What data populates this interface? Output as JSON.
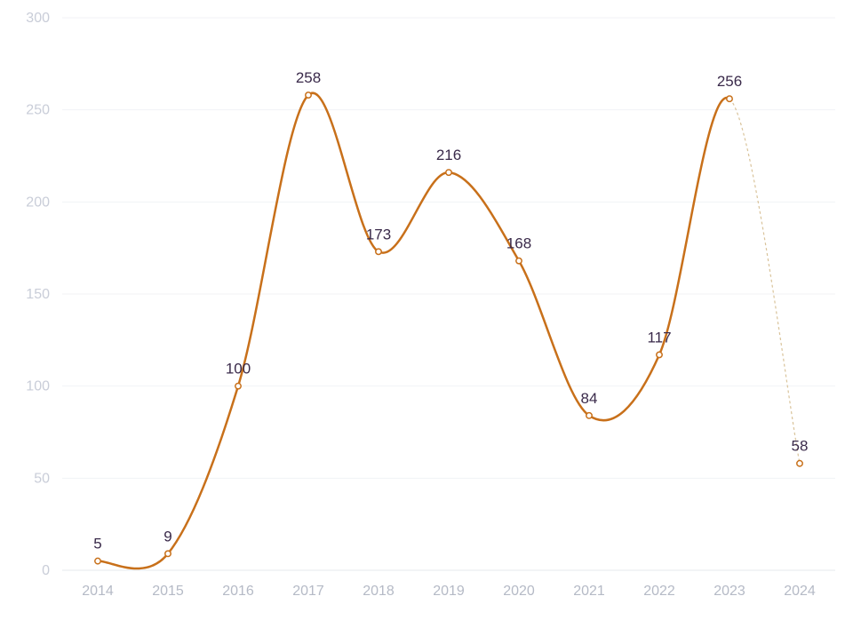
{
  "chart_data": {
    "type": "line",
    "title": "",
    "xlabel": "",
    "ylabel": "",
    "categories": [
      "2014",
      "2015",
      "2016",
      "2017",
      "2018",
      "2019",
      "2020",
      "2021",
      "2022",
      "2023",
      "2024"
    ],
    "series": [
      {
        "values": [
          5,
          9,
          100,
          258,
          173,
          216,
          168,
          84,
          117,
          256,
          58
        ],
        "color": "#c8701a",
        "smooth": true,
        "last_segment_style": "dashed"
      }
    ],
    "data_labels": [
      "5",
      "9",
      "100",
      "258",
      "173",
      "216",
      "168",
      "84",
      "117",
      "256",
      "58"
    ],
    "ylim": [
      0,
      300
    ],
    "y_ticks": [
      "0",
      "50",
      "100",
      "150",
      "200",
      "250",
      "300"
    ],
    "grid": true,
    "legend": "none"
  }
}
